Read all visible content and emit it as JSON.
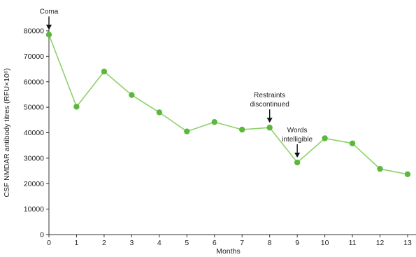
{
  "chart_data": {
    "type": "line",
    "x": [
      0,
      1,
      2,
      3,
      4,
      5,
      6,
      7,
      8,
      9,
      10,
      11,
      12,
      13
    ],
    "series": [
      {
        "values": [
          78500,
          50200,
          64000,
          54800,
          48000,
          40500,
          44200,
          41200,
          42000,
          28300,
          37800,
          35800,
          25800,
          23700
        ]
      }
    ],
    "xlabel": "Months",
    "ylabel": "CSF NMDAR antibody titres (RFU×10⁶)",
    "xlim": [
      0,
      13
    ],
    "ylim": [
      0,
      80000
    ],
    "x_ticks": [
      "0",
      "1",
      "2",
      "3",
      "4",
      "5",
      "6",
      "7",
      "8",
      "9",
      "10",
      "11",
      "12",
      "13"
    ],
    "y_ticks": [
      "0",
      "10000",
      "20000",
      "30000",
      "40000",
      "50000",
      "60000",
      "70000",
      "80000"
    ],
    "annotations": [
      {
        "x": 0,
        "lines": [
          "Coma"
        ]
      },
      {
        "x": 8,
        "lines": [
          "Restraints",
          "discontinued"
        ]
      },
      {
        "x": 9,
        "lines": [
          "Words",
          "intelligible"
        ]
      }
    ],
    "grid": false,
    "colors": {
      "line": "#8fd16c",
      "marker": "#5cb83c",
      "axis": "#333333"
    }
  }
}
